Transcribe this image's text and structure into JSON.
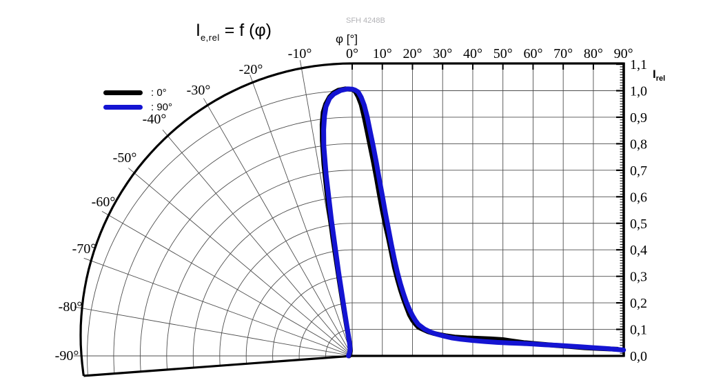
{
  "watermark": "SFH 4248B",
  "title": {
    "base": "I",
    "sub": "e,rel",
    "rest": " = f (φ)"
  },
  "top_axis": {
    "label": "φ [°]",
    "ticks": [
      "-10°",
      "0°",
      "10°",
      "20°",
      "30°",
      "40°",
      "50°",
      "60°",
      "70°",
      "80°",
      "90°"
    ]
  },
  "right_axis": {
    "label_base": "I",
    "label_sub": "rel",
    "ticks": [
      "1,1",
      "1,0",
      "0,9",
      "0,8",
      "0,7",
      "0,6",
      "0,5",
      "0,4",
      "0,3",
      "0,2",
      "0,1",
      "0,0"
    ]
  },
  "polar_labels": [
    "-20°",
    "-30°",
    "-40°",
    "-50°",
    "-60°",
    "-70°",
    "-80°",
    "-90°"
  ],
  "legend": [
    {
      "label": ": 0°",
      "color": "#000000"
    },
    {
      "label": ": 90°",
      "color": "#1414d2"
    }
  ],
  "chart_data": {
    "type": "line",
    "title": "I e,rel = f (phi)  relative radiant intensity vs angle",
    "xlabel": "phi [deg]",
    "ylabel": "I rel",
    "x_range_deg": [
      -90,
      90
    ],
    "y_range": [
      0.0,
      1.1
    ],
    "y_step": 0.1,
    "layout": "polar fan for negative angles (left), cartesian grid for positive angles (right)",
    "grid": true,
    "legend_position": "top-left",
    "series": [
      {
        "name": "0°",
        "color": "#000000",
        "points": [
          [
            -90,
            0.012
          ],
          [
            -60,
            0.012
          ],
          [
            -40,
            0.014
          ],
          [
            -28,
            0.016
          ],
          [
            -20,
            0.02
          ],
          [
            -15,
            0.027
          ],
          [
            -13,
            0.034
          ],
          [
            -11.5,
            0.05
          ],
          [
            -10.8,
            0.09
          ],
          [
            -10.2,
            0.17
          ],
          [
            -9.7,
            0.3
          ],
          [
            -9.3,
            0.45
          ],
          [
            -8.9,
            0.6
          ],
          [
            -8.4,
            0.73
          ],
          [
            -7.9,
            0.82
          ],
          [
            -7.4,
            0.88
          ],
          [
            -6.8,
            0.925
          ],
          [
            -6,
            0.955
          ],
          [
            -5,
            0.98
          ],
          [
            -4,
            0.995
          ],
          [
            -3,
            1.003
          ],
          [
            -1.5,
            1.007
          ],
          [
            0,
            1.005
          ],
          [
            1,
            0.998
          ],
          [
            2,
            0.978
          ],
          [
            3,
            0.948
          ],
          [
            4,
            0.9
          ],
          [
            5,
            0.845
          ],
          [
            6,
            0.79
          ],
          [
            7,
            0.735
          ],
          [
            8,
            0.675
          ],
          [
            9,
            0.61
          ],
          [
            10,
            0.55
          ],
          [
            11,
            0.495
          ],
          [
            12,
            0.445
          ],
          [
            13,
            0.39
          ],
          [
            14,
            0.335
          ],
          [
            15,
            0.29
          ],
          [
            16,
            0.25
          ],
          [
            17,
            0.215
          ],
          [
            18,
            0.185
          ],
          [
            19,
            0.155
          ],
          [
            20,
            0.135
          ],
          [
            21,
            0.12
          ],
          [
            22,
            0.108
          ],
          [
            23.5,
            0.1
          ],
          [
            25,
            0.092
          ],
          [
            27,
            0.085
          ],
          [
            29,
            0.08
          ],
          [
            31,
            0.076
          ],
          [
            34,
            0.071
          ],
          [
            38,
            0.068
          ],
          [
            42,
            0.066
          ],
          [
            46,
            0.064
          ],
          [
            50,
            0.061
          ],
          [
            53,
            0.056
          ],
          [
            57,
            0.05
          ],
          [
            62,
            0.045
          ],
          [
            67,
            0.04
          ],
          [
            72,
            0.036
          ],
          [
            77,
            0.031
          ],
          [
            82,
            0.028
          ],
          [
            86,
            0.026
          ],
          [
            88,
            0.025
          ]
        ]
      },
      {
        "name": "90°",
        "color": "#1414d2",
        "points": [
          [
            -90,
            0.014
          ],
          [
            -55,
            0.014
          ],
          [
            -35,
            0.017
          ],
          [
            -25,
            0.021
          ],
          [
            -18,
            0.027
          ],
          [
            -14,
            0.035
          ],
          [
            -12,
            0.048
          ],
          [
            -10.8,
            0.07
          ],
          [
            -10.2,
            0.1
          ],
          [
            -9.7,
            0.17
          ],
          [
            -9.2,
            0.32
          ],
          [
            -8.7,
            0.52
          ],
          [
            -8.2,
            0.69
          ],
          [
            -7.7,
            0.8
          ],
          [
            -7.2,
            0.86
          ],
          [
            -6.6,
            0.91
          ],
          [
            -6,
            0.945
          ],
          [
            -5,
            0.975
          ],
          [
            -4,
            0.99
          ],
          [
            -2.5,
            1.002
          ],
          [
            -1,
            1.007
          ],
          [
            0,
            1.006
          ],
          [
            1,
            1.002
          ],
          [
            2,
            0.995
          ],
          [
            3,
            0.975
          ],
          [
            4,
            0.945
          ],
          [
            5,
            0.9
          ],
          [
            6,
            0.845
          ],
          [
            7,
            0.79
          ],
          [
            8,
            0.73
          ],
          [
            9,
            0.665
          ],
          [
            10,
            0.605
          ],
          [
            11,
            0.54
          ],
          [
            12,
            0.48
          ],
          [
            13,
            0.42
          ],
          [
            14,
            0.365
          ],
          [
            15,
            0.315
          ],
          [
            16,
            0.272
          ],
          [
            17,
            0.235
          ],
          [
            18,
            0.202
          ],
          [
            19,
            0.175
          ],
          [
            20,
            0.152
          ],
          [
            21,
            0.133
          ],
          [
            22,
            0.118
          ],
          [
            24,
            0.101
          ],
          [
            26,
            0.09
          ],
          [
            28,
            0.082
          ],
          [
            30,
            0.076
          ],
          [
            33,
            0.068
          ],
          [
            36,
            0.063
          ],
          [
            40,
            0.058
          ],
          [
            44,
            0.054
          ],
          [
            48,
            0.051
          ],
          [
            52,
            0.049
          ],
          [
            56,
            0.047
          ],
          [
            60,
            0.045
          ],
          [
            64,
            0.042
          ],
          [
            68,
            0.04
          ],
          [
            72,
            0.037
          ],
          [
            76,
            0.034
          ],
          [
            80,
            0.031
          ],
          [
            84,
            0.028
          ],
          [
            87,
            0.025
          ],
          [
            90,
            0.022
          ]
        ]
      }
    ]
  }
}
